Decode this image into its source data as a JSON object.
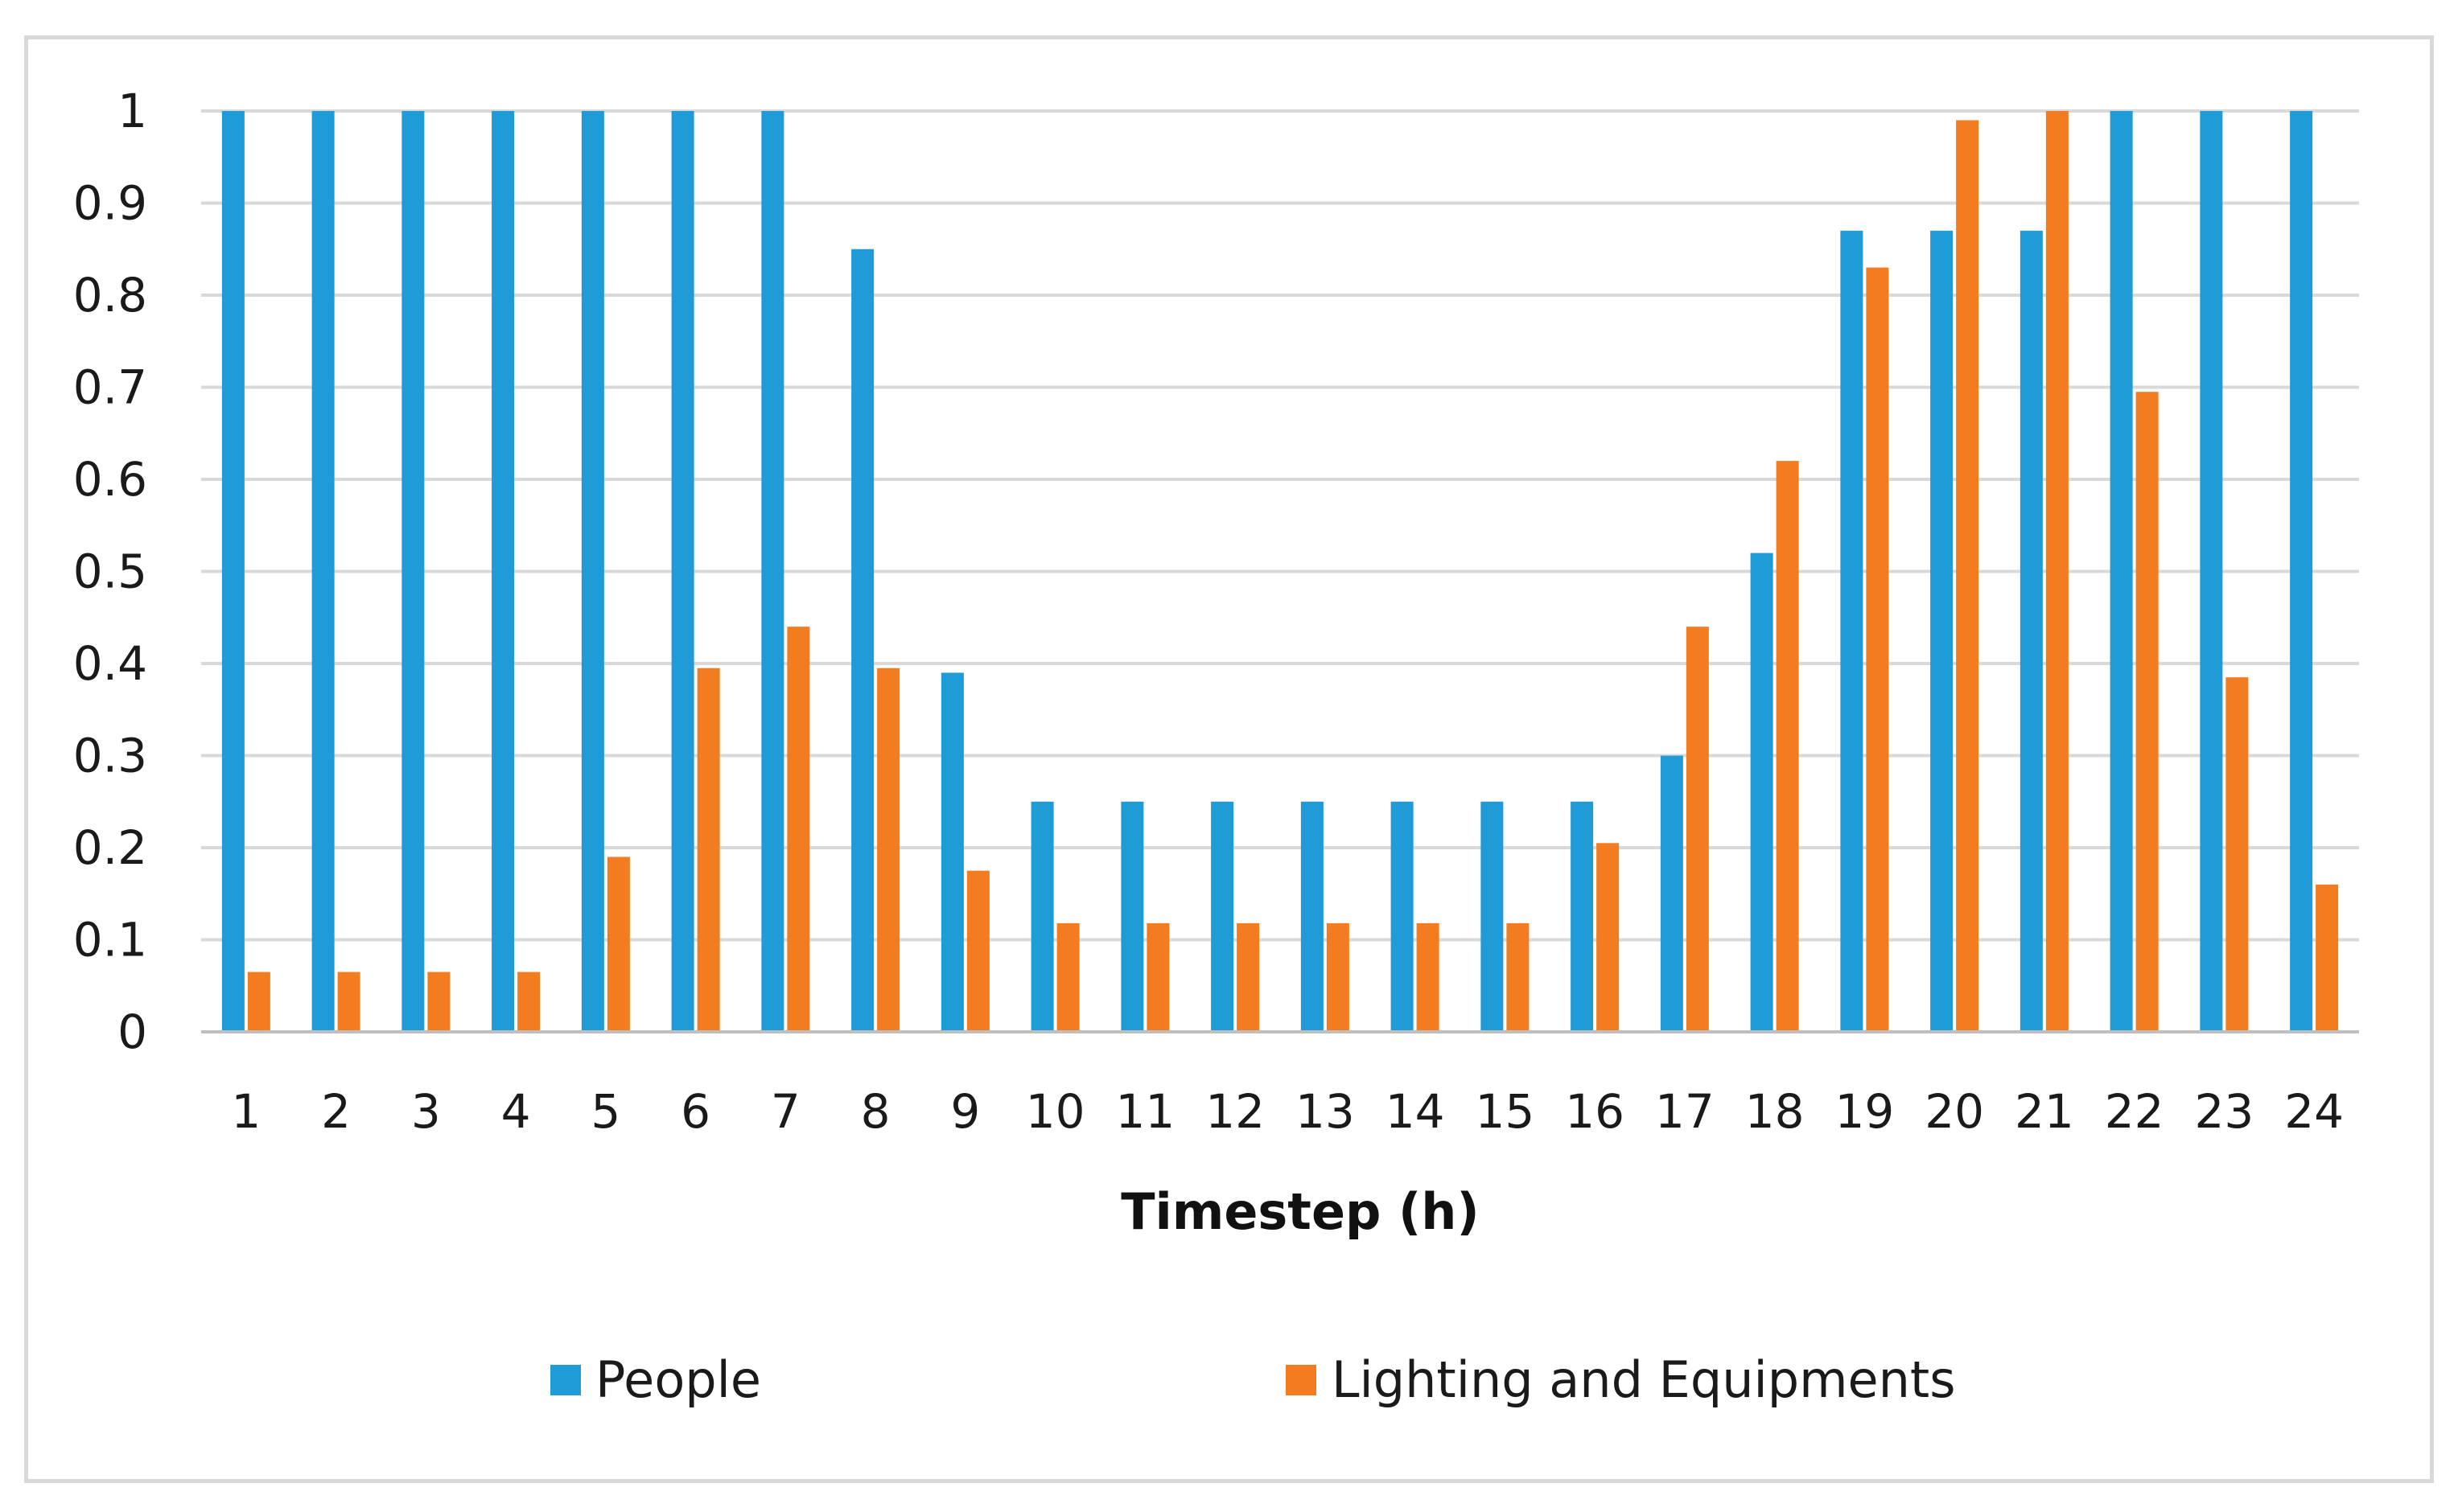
{
  "chart_data": {
    "type": "bar",
    "title": "",
    "xlabel": "Timestep (h)",
    "ylabel": "",
    "ylim": [
      0,
      1
    ],
    "yticks": [
      "0",
      "0.1",
      "0.2",
      "0.3",
      "0.4",
      "0.5",
      "0.6",
      "0.7",
      "0.8",
      "0.9",
      "1"
    ],
    "categories": [
      "1",
      "2",
      "3",
      "4",
      "5",
      "6",
      "7",
      "8",
      "9",
      "10",
      "11",
      "12",
      "13",
      "14",
      "15",
      "16",
      "17",
      "18",
      "19",
      "20",
      "21",
      "22",
      "23",
      "24"
    ],
    "series": [
      {
        "name": "People",
        "color": "#1f9bd7",
        "values": [
          1,
          1,
          1,
          1,
          1,
          1,
          1,
          0.85,
          0.39,
          0.25,
          0.25,
          0.25,
          0.25,
          0.25,
          0.25,
          0.25,
          0.3,
          0.52,
          0.87,
          0.87,
          0.87,
          1,
          1,
          1
        ]
      },
      {
        "name": "Lighting and Equipments",
        "color": "#f47c20",
        "values": [
          0.065,
          0.065,
          0.065,
          0.065,
          0.19,
          0.395,
          0.44,
          0.395,
          0.175,
          0.118,
          0.118,
          0.118,
          0.118,
          0.118,
          0.118,
          0.205,
          0.44,
          0.62,
          0.83,
          0.99,
          1,
          0.695,
          0.385,
          0.16
        ]
      }
    ],
    "grid": true,
    "legend_position": "bottom"
  }
}
